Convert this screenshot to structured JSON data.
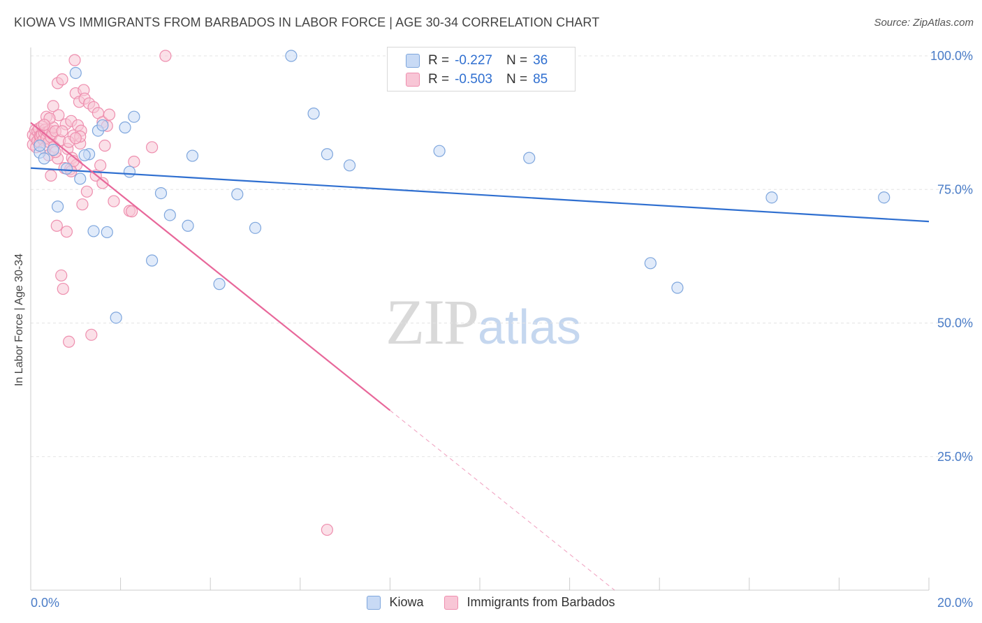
{
  "title": "KIOWA VS IMMIGRANTS FROM BARBADOS IN LABOR FORCE | AGE 30-34 CORRELATION CHART",
  "source": "Source: ZipAtlas.com",
  "watermark": {
    "zip": "ZIP",
    "atlas": "atlas"
  },
  "legend": {
    "rows": [
      {
        "r_label": "R =",
        "r_value": "-0.227",
        "n_label": "N =",
        "n_value": "36"
      },
      {
        "r_label": "R =",
        "r_value": "-0.503",
        "n_label": "N =",
        "n_value": "85"
      }
    ]
  },
  "colors": {
    "kiowa_fill": "#c8daf5",
    "kiowa_stroke": "#7ea6dd",
    "kiowa_line": "#2f6fd0",
    "barbados_fill": "#f8c6d6",
    "barbados_stroke": "#ee8eae",
    "barbados_line": "#e8679a",
    "tick_text": "#4a7cc7",
    "grid": "#e3e3e3"
  },
  "chart_data": {
    "type": "scatter",
    "title": "KIOWA VS IMMIGRANTS FROM BARBADOS IN LABOR FORCE | AGE 30-34 CORRELATION CHART",
    "xlabel": "",
    "ylabel": "In Labor Force | Age 30-34",
    "xlim": [
      0,
      20
    ],
    "ylim": [
      0,
      100
    ],
    "x_tick_labels": [
      "0.0%",
      "20.0%"
    ],
    "y_ticks": [
      25,
      50,
      75,
      100
    ],
    "y_tick_labels": [
      "25.0%",
      "50.0%",
      "75.0%",
      "100.0%"
    ],
    "grid": true,
    "legend_position": "top-center",
    "series": [
      {
        "name": "Kiowa",
        "r": -0.227,
        "n": 36,
        "trend": {
          "x0": 0,
          "y0": 79.0,
          "x1": 20,
          "y1": 69.0,
          "solid_to": 20
        },
        "points": [
          {
            "x": 0.2,
            "y": 81.9
          },
          {
            "x": 0.3,
            "y": 80.8
          },
          {
            "x": 0.5,
            "y": 82.4
          },
          {
            "x": 0.6,
            "y": 71.8
          },
          {
            "x": 0.8,
            "y": 78.9
          },
          {
            "x": 1.0,
            "y": 96.8
          },
          {
            "x": 1.1,
            "y": 77.0
          },
          {
            "x": 1.3,
            "y": 81.6
          },
          {
            "x": 1.4,
            "y": 67.2
          },
          {
            "x": 1.5,
            "y": 86.0
          },
          {
            "x": 1.6,
            "y": 87.0
          },
          {
            "x": 1.7,
            "y": 67.0
          },
          {
            "x": 1.9,
            "y": 51.0
          },
          {
            "x": 2.1,
            "y": 86.6
          },
          {
            "x": 2.2,
            "y": 78.3
          },
          {
            "x": 2.3,
            "y": 88.6
          },
          {
            "x": 2.7,
            "y": 61.7
          },
          {
            "x": 2.9,
            "y": 74.3
          },
          {
            "x": 3.1,
            "y": 70.2
          },
          {
            "x": 3.5,
            "y": 68.2
          },
          {
            "x": 3.6,
            "y": 81.3
          },
          {
            "x": 4.2,
            "y": 57.3
          },
          {
            "x": 4.6,
            "y": 74.1
          },
          {
            "x": 5.0,
            "y": 67.8
          },
          {
            "x": 5.8,
            "y": 100.0
          },
          {
            "x": 6.3,
            "y": 89.2
          },
          {
            "x": 6.6,
            "y": 81.6
          },
          {
            "x": 7.1,
            "y": 79.5
          },
          {
            "x": 9.1,
            "y": 82.2
          },
          {
            "x": 11.1,
            "y": 80.9
          },
          {
            "x": 13.8,
            "y": 61.2
          },
          {
            "x": 14.4,
            "y": 56.6
          },
          {
            "x": 16.5,
            "y": 73.5
          },
          {
            "x": 19.0,
            "y": 73.5
          },
          {
            "x": 0.2,
            "y": 83.2
          },
          {
            "x": 1.2,
            "y": 81.4
          }
        ]
      },
      {
        "name": "Immigrants from Barbados",
        "r": -0.503,
        "n": 85,
        "trend": {
          "x0": 0,
          "y0": 87.5,
          "x1": 13.0,
          "y1": 0.0,
          "solid_to": 8.0
        },
        "points": [
          {
            "x": 0.05,
            "y": 85.2
          },
          {
            "x": 0.05,
            "y": 83.4
          },
          {
            "x": 0.1,
            "y": 86.1
          },
          {
            "x": 0.1,
            "y": 84.7
          },
          {
            "x": 0.12,
            "y": 82.9
          },
          {
            "x": 0.15,
            "y": 85.9
          },
          {
            "x": 0.15,
            "y": 84.1
          },
          {
            "x": 0.18,
            "y": 86.4
          },
          {
            "x": 0.2,
            "y": 85.0
          },
          {
            "x": 0.2,
            "y": 83.7
          },
          {
            "x": 0.22,
            "y": 84.9
          },
          {
            "x": 0.25,
            "y": 86.8
          },
          {
            "x": 0.25,
            "y": 85.3
          },
          {
            "x": 0.28,
            "y": 84.3
          },
          {
            "x": 0.3,
            "y": 85.6
          },
          {
            "x": 0.3,
            "y": 82.7
          },
          {
            "x": 0.32,
            "y": 86.2
          },
          {
            "x": 0.35,
            "y": 84.6
          },
          {
            "x": 0.35,
            "y": 88.6
          },
          {
            "x": 0.38,
            "y": 85.8
          },
          {
            "x": 0.4,
            "y": 83.9
          },
          {
            "x": 0.4,
            "y": 81.4
          },
          {
            "x": 0.42,
            "y": 86.0
          },
          {
            "x": 0.45,
            "y": 84.8
          },
          {
            "x": 0.45,
            "y": 77.6
          },
          {
            "x": 0.48,
            "y": 85.4
          },
          {
            "x": 0.5,
            "y": 86.6
          },
          {
            "x": 0.5,
            "y": 90.6
          },
          {
            "x": 0.52,
            "y": 83.0
          },
          {
            "x": 0.55,
            "y": 85.9
          },
          {
            "x": 0.58,
            "y": 68.2
          },
          {
            "x": 0.6,
            "y": 94.9
          },
          {
            "x": 0.62,
            "y": 88.9
          },
          {
            "x": 0.65,
            "y": 84.2
          },
          {
            "x": 0.68,
            "y": 58.9
          },
          {
            "x": 0.7,
            "y": 95.6
          },
          {
            "x": 0.72,
            "y": 56.4
          },
          {
            "x": 0.75,
            "y": 79.0
          },
          {
            "x": 0.78,
            "y": 87.2
          },
          {
            "x": 0.8,
            "y": 67.1
          },
          {
            "x": 0.82,
            "y": 82.6
          },
          {
            "x": 0.85,
            "y": 46.5
          },
          {
            "x": 0.88,
            "y": 78.8
          },
          {
            "x": 0.9,
            "y": 87.8
          },
          {
            "x": 0.92,
            "y": 80.9
          },
          {
            "x": 0.95,
            "y": 85.1
          },
          {
            "x": 0.98,
            "y": 99.2
          },
          {
            "x": 1.0,
            "y": 93.0
          },
          {
            "x": 1.02,
            "y": 79.6
          },
          {
            "x": 1.05,
            "y": 87.0
          },
          {
            "x": 1.08,
            "y": 91.4
          },
          {
            "x": 1.1,
            "y": 83.6
          },
          {
            "x": 1.12,
            "y": 86.0
          },
          {
            "x": 1.15,
            "y": 72.2
          },
          {
            "x": 1.18,
            "y": 93.6
          },
          {
            "x": 1.2,
            "y": 92.0
          },
          {
            "x": 1.25,
            "y": 74.6
          },
          {
            "x": 1.3,
            "y": 91.1
          },
          {
            "x": 1.35,
            "y": 47.8
          },
          {
            "x": 1.4,
            "y": 90.4
          },
          {
            "x": 1.45,
            "y": 77.6
          },
          {
            "x": 1.5,
            "y": 89.3
          },
          {
            "x": 1.55,
            "y": 79.5
          },
          {
            "x": 1.6,
            "y": 87.6
          },
          {
            "x": 1.65,
            "y": 83.2
          },
          {
            "x": 1.7,
            "y": 86.9
          },
          {
            "x": 1.75,
            "y": 89.0
          },
          {
            "x": 1.85,
            "y": 72.8
          },
          {
            "x": 2.2,
            "y": 71.0
          },
          {
            "x": 2.3,
            "y": 80.2
          },
          {
            "x": 2.7,
            "y": 82.9
          },
          {
            "x": 3.0,
            "y": 100.0
          },
          {
            "x": 6.6,
            "y": 11.3
          },
          {
            "x": 0.6,
            "y": 80.8
          },
          {
            "x": 0.7,
            "y": 85.9
          },
          {
            "x": 0.9,
            "y": 78.4
          },
          {
            "x": 1.1,
            "y": 84.9
          },
          {
            "x": 1.6,
            "y": 76.2
          },
          {
            "x": 2.25,
            "y": 70.9
          },
          {
            "x": 0.42,
            "y": 88.3
          },
          {
            "x": 0.3,
            "y": 87.1
          },
          {
            "x": 0.55,
            "y": 82.0
          },
          {
            "x": 0.85,
            "y": 83.9
          },
          {
            "x": 1.0,
            "y": 84.6
          },
          {
            "x": 0.95,
            "y": 80.3
          }
        ]
      }
    ]
  }
}
